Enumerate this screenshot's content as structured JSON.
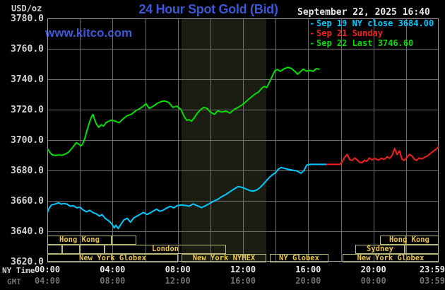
{
  "header": {
    "unit_label": "USD/oz",
    "title": "24 Hour Spot Gold (Bid)",
    "date_time": "September 22, 2025 16:40",
    "watermark": "www.kitco.com"
  },
  "colors": {
    "background": "#000000",
    "title_blue": "#3b57d6",
    "grid": "#6e6e6e",
    "border": "#9a9a9a",
    "shaded_band": "#1b1d13",
    "session_box_border": "#b9b97a",
    "session_text": "#e8c44a",
    "axis_text": "#d2d2d2",
    "ny_time_text": "#e6e6e6",
    "gmt_text": "#6f6f6f",
    "cyan_line": "#00c8ff",
    "red_line": "#f42020",
    "green_line": "#00dd00"
  },
  "legend": {
    "items": [
      {
        "marker": "-",
        "label": "Sep 19 NY close 3684.00",
        "color": "#00c8ff"
      },
      {
        "marker": "-",
        "label": "Sep 21 Sunday",
        "color": "#f42020"
      },
      {
        "marker": "-",
        "label": "Sep 22 Last 3746.60",
        "color": "#00dd00"
      }
    ]
  },
  "axes": {
    "y_ticks": [
      "3780.0",
      "3760.0",
      "3740.0",
      "3720.0",
      "3700.0",
      "3680.0",
      "3660.0",
      "3640.0",
      "3620.0"
    ],
    "x_rows": [
      {
        "name": "NY Time",
        "ticks": [
          "00:00",
          "04:00",
          "08:00",
          "12:00",
          "16:00",
          "20:00",
          "23:59"
        ]
      },
      {
        "name": "GMT",
        "ticks": [
          "04:00",
          "08:00",
          "12:00",
          "16:00",
          "20:00",
          "00:00",
          "03:59"
        ]
      }
    ],
    "tick_hours": [
      0,
      4,
      8,
      12,
      16,
      20,
      23.983
    ]
  },
  "sessions": [
    {
      "row": 1,
      "label": "Hong Kong",
      "start": 0,
      "end": 3.94
    },
    {
      "row": 1,
      "label": "",
      "start": 3.94,
      "end": 5.46
    },
    {
      "row": 1,
      "label": "Hong Kong",
      "start": 20.4,
      "end": 24,
      "divider": 21.92
    },
    {
      "row": 2,
      "label": "",
      "start": 0,
      "end": 0.91
    },
    {
      "row": 2,
      "label": "",
      "start": 0.91,
      "end": 1.99
    },
    {
      "row": 2,
      "label": "",
      "start": 1.99,
      "end": 3.51
    },
    {
      "row": 2,
      "label": "London",
      "start": 3.51,
      "end": 10.96
    },
    {
      "row": 2,
      "label": "Sydney",
      "start": 18.89,
      "end": 21.92
    },
    {
      "row": 2,
      "label": "",
      "start": 21.92,
      "end": 24
    },
    {
      "row": 3,
      "label": "New York Globex",
      "start": 0,
      "end": 8.01
    },
    {
      "row": 3,
      "label": "New York NYMEX",
      "start": 8.23,
      "end": 13.43
    },
    {
      "row": 3,
      "label": "NY Globex",
      "start": 13.65,
      "end": 17.24
    },
    {
      "row": 3,
      "label": "New York Globex",
      "start": 18.11,
      "end": 24
    }
  ],
  "chart_data": {
    "type": "line",
    "title": "24 Hour Spot Gold (Bid)",
    "ylabel": "USD/oz",
    "ylim": [
      3620,
      3780
    ],
    "y_tick_step": 20,
    "x_hours": [
      0,
      24
    ],
    "grid": true,
    "grid_x_step_hours": 2,
    "shaded_band_hours": [
      8.23,
      13.43
    ],
    "series": [
      {
        "name": "Sep 19 NY close",
        "close": 3684.0,
        "color": "#00c8ff",
        "points": [
          [
            0,
            3652
          ],
          [
            0.1,
            3655
          ],
          [
            0.25,
            3657.3
          ],
          [
            0.5,
            3658
          ],
          [
            0.7,
            3658.8
          ],
          [
            0.85,
            3657.8
          ],
          [
            1.0,
            3658.3
          ],
          [
            1.2,
            3657.9
          ],
          [
            1.4,
            3656.5
          ],
          [
            1.6,
            3656.8
          ],
          [
            1.8,
            3655.5
          ],
          [
            2.0,
            3655.8
          ],
          [
            2.2,
            3654
          ],
          [
            2.4,
            3652.8
          ],
          [
            2.6,
            3653.8
          ],
          [
            2.8,
            3652.3
          ],
          [
            3.0,
            3651.5
          ],
          [
            3.2,
            3650
          ],
          [
            3.35,
            3651
          ],
          [
            3.55,
            3648.5
          ],
          [
            3.75,
            3647
          ],
          [
            3.95,
            3645
          ],
          [
            4.1,
            3642.2
          ],
          [
            4.2,
            3644
          ],
          [
            4.35,
            3641.8
          ],
          [
            4.5,
            3644.5
          ],
          [
            4.7,
            3647.5
          ],
          [
            4.9,
            3648.5
          ],
          [
            5.1,
            3646
          ],
          [
            5.3,
            3648.8
          ],
          [
            5.5,
            3650
          ],
          [
            5.7,
            3651.2
          ],
          [
            5.9,
            3652.4
          ],
          [
            6.1,
            3651
          ],
          [
            6.3,
            3652
          ],
          [
            6.5,
            3653.3
          ],
          [
            6.7,
            3654.5
          ],
          [
            6.9,
            3653.2
          ],
          [
            7.1,
            3653.8
          ],
          [
            7.3,
            3655.2
          ],
          [
            7.55,
            3656.4
          ],
          [
            7.75,
            3655.4
          ],
          [
            7.95,
            3656.8
          ],
          [
            8.2,
            3657.3
          ],
          [
            8.45,
            3657
          ],
          [
            8.7,
            3656.5
          ],
          [
            8.95,
            3658
          ],
          [
            9.2,
            3656.8
          ],
          [
            9.45,
            3655.6
          ],
          [
            9.7,
            3656.8
          ],
          [
            9.95,
            3658.3
          ],
          [
            10.2,
            3659.8
          ],
          [
            10.45,
            3661
          ],
          [
            10.7,
            3662.8
          ],
          [
            10.95,
            3664.2
          ],
          [
            11.2,
            3666
          ],
          [
            11.45,
            3667.8
          ],
          [
            11.7,
            3669.4
          ],
          [
            11.9,
            3669
          ],
          [
            12.15,
            3668
          ],
          [
            12.4,
            3666.8
          ],
          [
            12.65,
            3666.4
          ],
          [
            12.85,
            3667.2
          ],
          [
            13.05,
            3668.8
          ],
          [
            13.25,
            3671
          ],
          [
            13.45,
            3673.5
          ],
          [
            13.65,
            3675.8
          ],
          [
            13.85,
            3677.5
          ],
          [
            14.0,
            3678.5
          ],
          [
            14.15,
            3680.7
          ],
          [
            14.35,
            3682
          ],
          [
            14.55,
            3681.3
          ],
          [
            14.8,
            3680.7
          ],
          [
            15.05,
            3680.2
          ],
          [
            15.3,
            3679.7
          ],
          [
            15.55,
            3678.2
          ],
          [
            15.75,
            3680
          ],
          [
            15.9,
            3683.5
          ],
          [
            16.1,
            3684
          ],
          [
            16.6,
            3684
          ],
          [
            17.15,
            3684
          ]
        ]
      },
      {
        "name": "Sep 21 Sunday",
        "color": "#f42020",
        "points": [
          [
            17.15,
            3684
          ],
          [
            17.95,
            3684
          ],
          [
            18.1,
            3686
          ],
          [
            18.25,
            3689
          ],
          [
            18.4,
            3690.5
          ],
          [
            18.55,
            3687
          ],
          [
            18.7,
            3686.6
          ],
          [
            18.85,
            3688.2
          ],
          [
            19.0,
            3687
          ],
          [
            19.15,
            3685.4
          ],
          [
            19.3,
            3685.1
          ],
          [
            19.45,
            3686.6
          ],
          [
            19.6,
            3686
          ],
          [
            19.75,
            3688.2
          ],
          [
            19.9,
            3687
          ],
          [
            20.1,
            3687.8
          ],
          [
            20.3,
            3686.8
          ],
          [
            20.5,
            3688
          ],
          [
            20.65,
            3687.2
          ],
          [
            20.85,
            3689
          ],
          [
            21.0,
            3688
          ],
          [
            21.15,
            3690
          ],
          [
            21.3,
            3694.4
          ],
          [
            21.45,
            3690.5
          ],
          [
            21.6,
            3692.9
          ],
          [
            21.75,
            3687.4
          ],
          [
            21.9,
            3686.6
          ],
          [
            22.05,
            3688.5
          ],
          [
            22.2,
            3690.5
          ],
          [
            22.35,
            3689.8
          ],
          [
            22.5,
            3687.5
          ],
          [
            22.65,
            3686.6
          ],
          [
            22.8,
            3688.2
          ],
          [
            22.95,
            3687.6
          ],
          [
            23.1,
            3688.4
          ],
          [
            23.3,
            3689.5
          ],
          [
            23.5,
            3691.2
          ],
          [
            23.7,
            3692.9
          ],
          [
            23.85,
            3694
          ],
          [
            23.98,
            3695.5
          ]
        ]
      },
      {
        "name": "Sep 22 Last",
        "last": 3746.6,
        "color": "#00dd00",
        "points": [
          [
            0,
            3694.5
          ],
          [
            0.15,
            3692
          ],
          [
            0.3,
            3690.3
          ],
          [
            0.5,
            3689.8
          ],
          [
            0.7,
            3690.2
          ],
          [
            0.9,
            3690
          ],
          [
            1.1,
            3690.8
          ],
          [
            1.3,
            3692
          ],
          [
            1.5,
            3694.4
          ],
          [
            1.65,
            3696.5
          ],
          [
            1.78,
            3698.3
          ],
          [
            1.9,
            3697.5
          ],
          [
            2.05,
            3696.3
          ],
          [
            2.15,
            3697
          ],
          [
            2.3,
            3701
          ],
          [
            2.45,
            3707
          ],
          [
            2.6,
            3712
          ],
          [
            2.7,
            3715
          ],
          [
            2.8,
            3716.9
          ],
          [
            2.9,
            3713.5
          ],
          [
            3.0,
            3710.7
          ],
          [
            3.15,
            3708.4
          ],
          [
            3.3,
            3710
          ],
          [
            3.45,
            3709.2
          ],
          [
            3.6,
            3711.5
          ],
          [
            3.9,
            3713
          ],
          [
            4.1,
            3712.7
          ],
          [
            4.25,
            3712
          ],
          [
            4.4,
            3711.4
          ],
          [
            4.6,
            3713.5
          ],
          [
            4.9,
            3716.1
          ],
          [
            5.15,
            3716.9
          ],
          [
            5.45,
            3719.5
          ],
          [
            5.65,
            3720.5
          ],
          [
            5.85,
            3722
          ],
          [
            6.05,
            3723.9
          ],
          [
            6.25,
            3720.8
          ],
          [
            6.5,
            3722.3
          ],
          [
            6.75,
            3724.2
          ],
          [
            7.0,
            3725.4
          ],
          [
            7.2,
            3725.7
          ],
          [
            7.45,
            3724.7
          ],
          [
            7.7,
            3721.5
          ],
          [
            7.95,
            3722.3
          ],
          [
            8.2,
            3720
          ],
          [
            8.4,
            3715.3
          ],
          [
            8.55,
            3713
          ],
          [
            8.7,
            3713.4
          ],
          [
            8.85,
            3712.4
          ],
          [
            9.0,
            3714.5
          ],
          [
            9.2,
            3717.7
          ],
          [
            9.4,
            3720
          ],
          [
            9.6,
            3721.5
          ],
          [
            9.8,
            3720.8
          ],
          [
            10.0,
            3718.4
          ],
          [
            10.25,
            3716.9
          ],
          [
            10.45,
            3719.2
          ],
          [
            10.7,
            3718.4
          ],
          [
            10.95,
            3719
          ],
          [
            11.2,
            3717.7
          ],
          [
            11.45,
            3720
          ],
          [
            11.7,
            3721.5
          ],
          [
            11.95,
            3723.1
          ],
          [
            12.2,
            3725.4
          ],
          [
            12.45,
            3727.7
          ],
          [
            12.7,
            3730
          ],
          [
            12.95,
            3731.6
          ],
          [
            13.15,
            3734
          ],
          [
            13.3,
            3735.3
          ],
          [
            13.45,
            3734.5
          ],
          [
            13.6,
            3737.5
          ],
          [
            13.75,
            3741
          ],
          [
            13.95,
            3745.5
          ],
          [
            14.1,
            3746.4
          ],
          [
            14.3,
            3745.2
          ],
          [
            14.5,
            3746.8
          ],
          [
            14.75,
            3747.8
          ],
          [
            14.95,
            3747.2
          ],
          [
            15.2,
            3745
          ],
          [
            15.35,
            3743.3
          ],
          [
            15.55,
            3745.2
          ],
          [
            15.7,
            3746.6
          ],
          [
            15.9,
            3745.3
          ],
          [
            16.1,
            3745.8
          ],
          [
            16.3,
            3745.2
          ],
          [
            16.5,
            3747
          ],
          [
            16.67,
            3746.6
          ]
        ]
      }
    ]
  }
}
